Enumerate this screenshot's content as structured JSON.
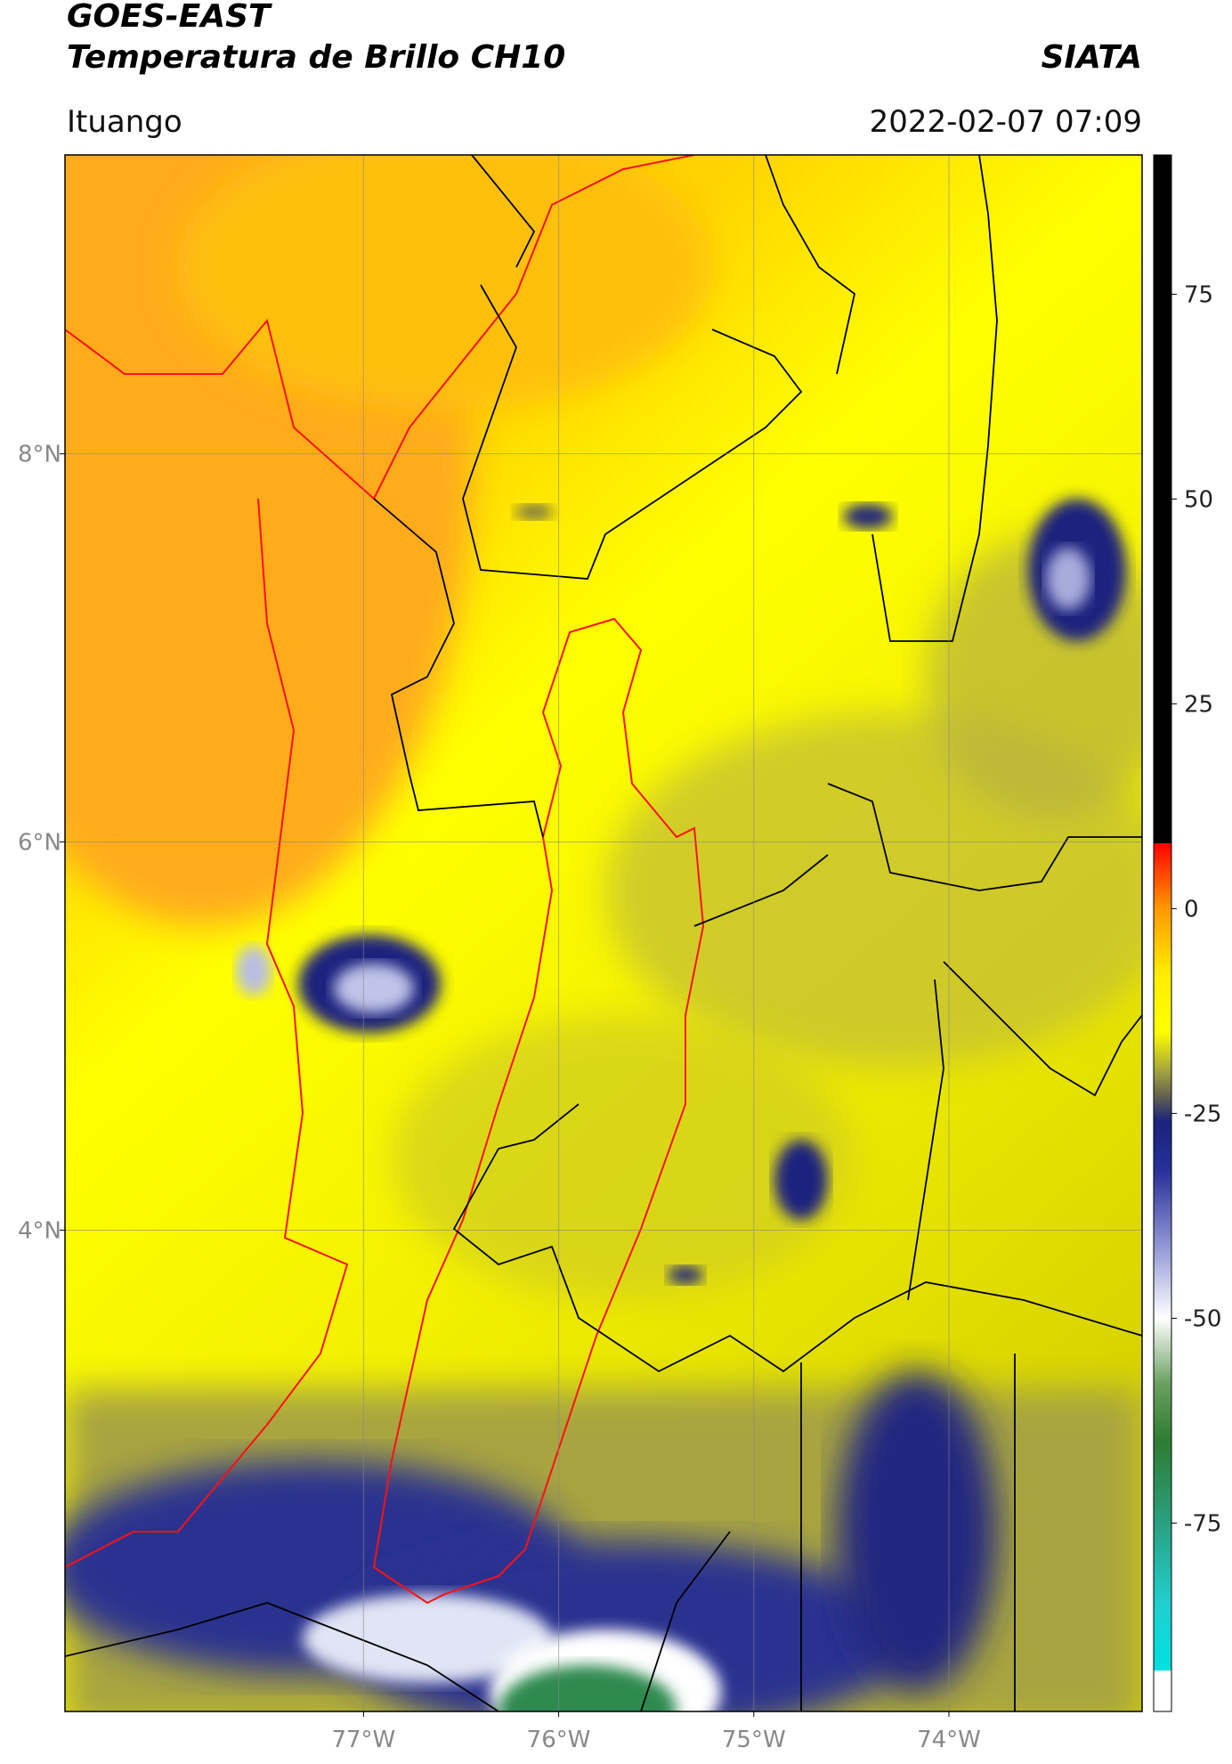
{
  "header": {
    "title": "GOES-EAST",
    "subtitle": "Temperatura de Brillo CH10",
    "agency": "SIATA",
    "location": "Ituango",
    "datetime": "2022-02-07 07:09"
  },
  "chart_data": {
    "type": "map",
    "xlim": [
      -78.53,
      -73.01
    ],
    "ylim": [
      1.52,
      9.54
    ],
    "xticks": [
      {
        "value": -77,
        "label": "77°W"
      },
      {
        "value": -76,
        "label": "76°W"
      },
      {
        "value": -75,
        "label": "75°W"
      },
      {
        "value": -74,
        "label": "74°W"
      }
    ],
    "yticks": [
      {
        "value": 8,
        "label": "8°N"
      },
      {
        "value": 6,
        "label": "6°N"
      },
      {
        "value": 4,
        "label": "4°N"
      }
    ],
    "grid": true,
    "colorbar": {
      "clim": [
        -98,
        92
      ],
      "ticks": [
        75,
        50,
        25,
        0,
        -25,
        -50,
        -75
      ],
      "colormap": [
        {
          "value": 92,
          "color": "#000000"
        },
        {
          "value": 8,
          "color": "#000000"
        },
        {
          "value": 8,
          "color": "#ff0000"
        },
        {
          "value": 0,
          "color": "#ff9900"
        },
        {
          "value": -8,
          "color": "#ffee00"
        },
        {
          "value": -15,
          "color": "#ffff00"
        },
        {
          "value": -20,
          "color": "#a0a040"
        },
        {
          "value": -23,
          "color": "#606050"
        },
        {
          "value": -26,
          "color": "#1a237e"
        },
        {
          "value": -32,
          "color": "#28309a"
        },
        {
          "value": -42,
          "color": "#9aa0d8"
        },
        {
          "value": -50,
          "color": "#ffffff"
        },
        {
          "value": -58,
          "color": "#6aa060"
        },
        {
          "value": -65,
          "color": "#2e7d32"
        },
        {
          "value": -75,
          "color": "#2aa080"
        },
        {
          "value": -85,
          "color": "#20d0d0"
        },
        {
          "value": -93,
          "color": "#00e0e0"
        },
        {
          "value": -93,
          "color": "#ffffff"
        },
        {
          "value": -98,
          "color": "#ffffff"
        }
      ]
    }
  }
}
